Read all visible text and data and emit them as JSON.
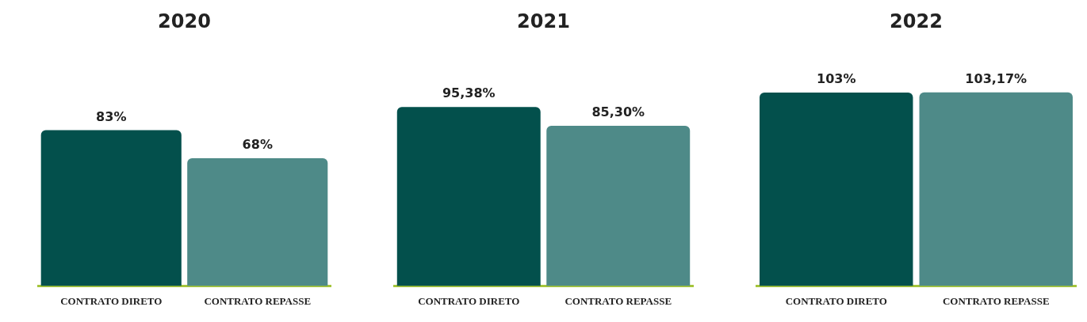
{
  "chart_data": [
    {
      "type": "bar",
      "title": "2020",
      "categories": [
        "CONTRATO DIRETO",
        "CONTRATO REPASSE"
      ],
      "values": [
        83,
        68
      ],
      "colors": [
        "#03504c",
        "#4e8a88"
      ],
      "value_labels": [
        "83%",
        "68%"
      ]
    },
    {
      "type": "bar",
      "title": "2021",
      "categories": [
        "CONTRATO DIRETO",
        "CONTRATO REPASSE"
      ],
      "values": [
        95.38,
        85.3
      ],
      "colors": [
        "#03504c",
        "#4e8a88"
      ],
      "value_labels": [
        "95,38%",
        "85,30%"
      ]
    },
    {
      "type": "bar",
      "title": "2022",
      "categories": [
        "CONTRATO DIRETO",
        "CONTRATO REPASSE"
      ],
      "values": [
        103,
        103.17
      ],
      "colors": [
        "#03504c",
        "#4e8a88"
      ],
      "value_labels": [
        "103%",
        "103,17%"
      ]
    }
  ]
}
